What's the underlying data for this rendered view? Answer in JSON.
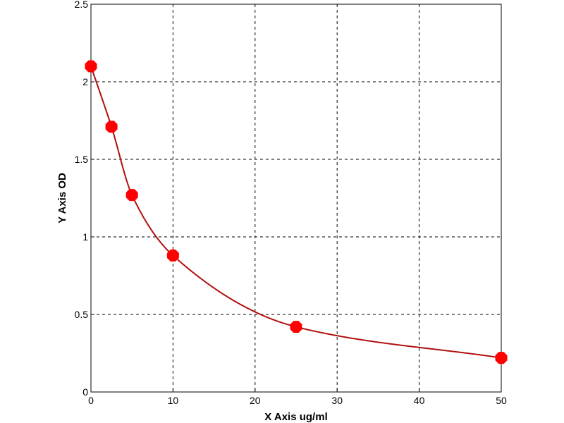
{
  "chart_data": {
    "type": "scatter",
    "title": "",
    "xlabel": "X Axis ug/ml",
    "ylabel": "Y Axis OD",
    "xlim": [
      0,
      50
    ],
    "ylim": [
      0,
      2.5
    ],
    "xticks": [
      0,
      10,
      20,
      30,
      40,
      50
    ],
    "yticks": [
      0,
      0.5,
      1,
      1.5,
      2,
      2.5
    ],
    "xtick_labels": [
      "0",
      "10",
      "20",
      "30",
      "40",
      "50"
    ],
    "ytick_labels": [
      "0",
      "0.5",
      "1",
      "1.5",
      "2",
      "2.5"
    ],
    "grid": true,
    "grid_style": "dashed",
    "legend": "none",
    "series": [
      {
        "x": [
          0,
          2.5,
          5,
          10,
          25,
          50
        ],
        "y": [
          2.1,
          1.71,
          1.27,
          0.88,
          0.42,
          0.22
        ],
        "marker_color": "#ff0000",
        "fit_curve_color": "#b01010"
      }
    ]
  }
}
